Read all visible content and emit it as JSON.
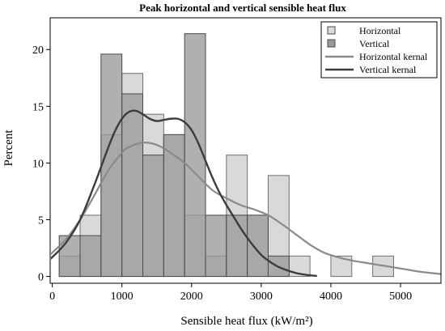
{
  "chart_data": {
    "type": "histogram",
    "title": "Peak horizontal and vertical sensible heat flux",
    "xlabel": "Sensible heat flux (kW/m²)",
    "ylabel": "Percent",
    "xlim": [
      -30,
      5580
    ],
    "ylim": [
      -0.6,
      22.8
    ],
    "x_ticks": [
      0,
      1000,
      2000,
      3000,
      4000,
      5000
    ],
    "y_ticks": [
      0,
      5,
      10,
      15,
      20
    ],
    "bin_edges": [
      100,
      400,
      700,
      1000,
      1300,
      1600,
      1900,
      2200,
      2500,
      2800,
      3100,
      3400,
      3700,
      4000,
      4300,
      4600,
      4900
    ],
    "series": [
      {
        "name": "Horizontal",
        "kind": "histogram",
        "color": "#d9d9d9",
        "values": [
          1.8,
          5.4,
          12.5,
          17.9,
          14.3,
          12.5,
          5.4,
          1.8,
          10.7,
          5.4,
          8.9,
          1.8,
          0,
          1.8,
          0,
          1.8
        ]
      },
      {
        "name": "Vertical",
        "kind": "histogram",
        "color": "#9a9a9a",
        "values": [
          3.6,
          3.6,
          19.6,
          16.1,
          10.7,
          12.5,
          21.4,
          5.4,
          5.4,
          5.4,
          1.8,
          0,
          0,
          0,
          0,
          0
        ]
      },
      {
        "name": "Horizontal kernal",
        "kind": "density",
        "color": "#8a8a8a",
        "x": [
          -100,
          0,
          200,
          400,
          600,
          800,
          1000,
          1100,
          1300,
          1500,
          1700,
          1900,
          2100,
          2300,
          2500,
          2700,
          2900,
          3100,
          3300,
          3500,
          3700,
          3900,
          4100,
          4300,
          4500,
          4700,
          4900,
          5100,
          5300,
          5600
        ],
        "y": [
          1.6,
          2.1,
          3.3,
          5.0,
          7.1,
          9.3,
          10.9,
          11.4,
          11.8,
          11.6,
          10.9,
          10.0,
          8.8,
          7.6,
          6.9,
          6.3,
          5.9,
          5.4,
          4.6,
          3.7,
          2.8,
          2.1,
          1.7,
          1.4,
          1.2,
          1.0,
          0.8,
          0.6,
          0.4,
          0.2
        ]
      },
      {
        "name": "Vertical kernal",
        "kind": "density",
        "color": "#3c3c3c",
        "x": [
          -100,
          0,
          200,
          400,
          600,
          800,
          900,
          1000,
          1100,
          1200,
          1300,
          1400,
          1500,
          1600,
          1700,
          1800,
          1900,
          2000,
          2100,
          2200,
          2300,
          2400,
          2500,
          2600,
          2700,
          2800,
          2900,
          3000,
          3100,
          3200,
          3300,
          3500,
          3700,
          3800
        ],
        "y": [
          1.2,
          1.7,
          3.0,
          5.0,
          8.0,
          11.3,
          12.8,
          13.9,
          14.5,
          14.6,
          14.3,
          13.9,
          13.7,
          13.8,
          13.9,
          13.9,
          13.6,
          12.9,
          11.7,
          10.2,
          8.7,
          7.4,
          6.3,
          5.3,
          4.3,
          3.4,
          2.6,
          1.9,
          1.4,
          1.0,
          0.7,
          0.3,
          0.1,
          0.05
        ]
      }
    ],
    "legend": {
      "position": "top-right",
      "entries": [
        "Horizontal",
        "Vertical",
        "Horizontal kernal",
        "Vertical kernal"
      ]
    },
    "grid": false
  }
}
